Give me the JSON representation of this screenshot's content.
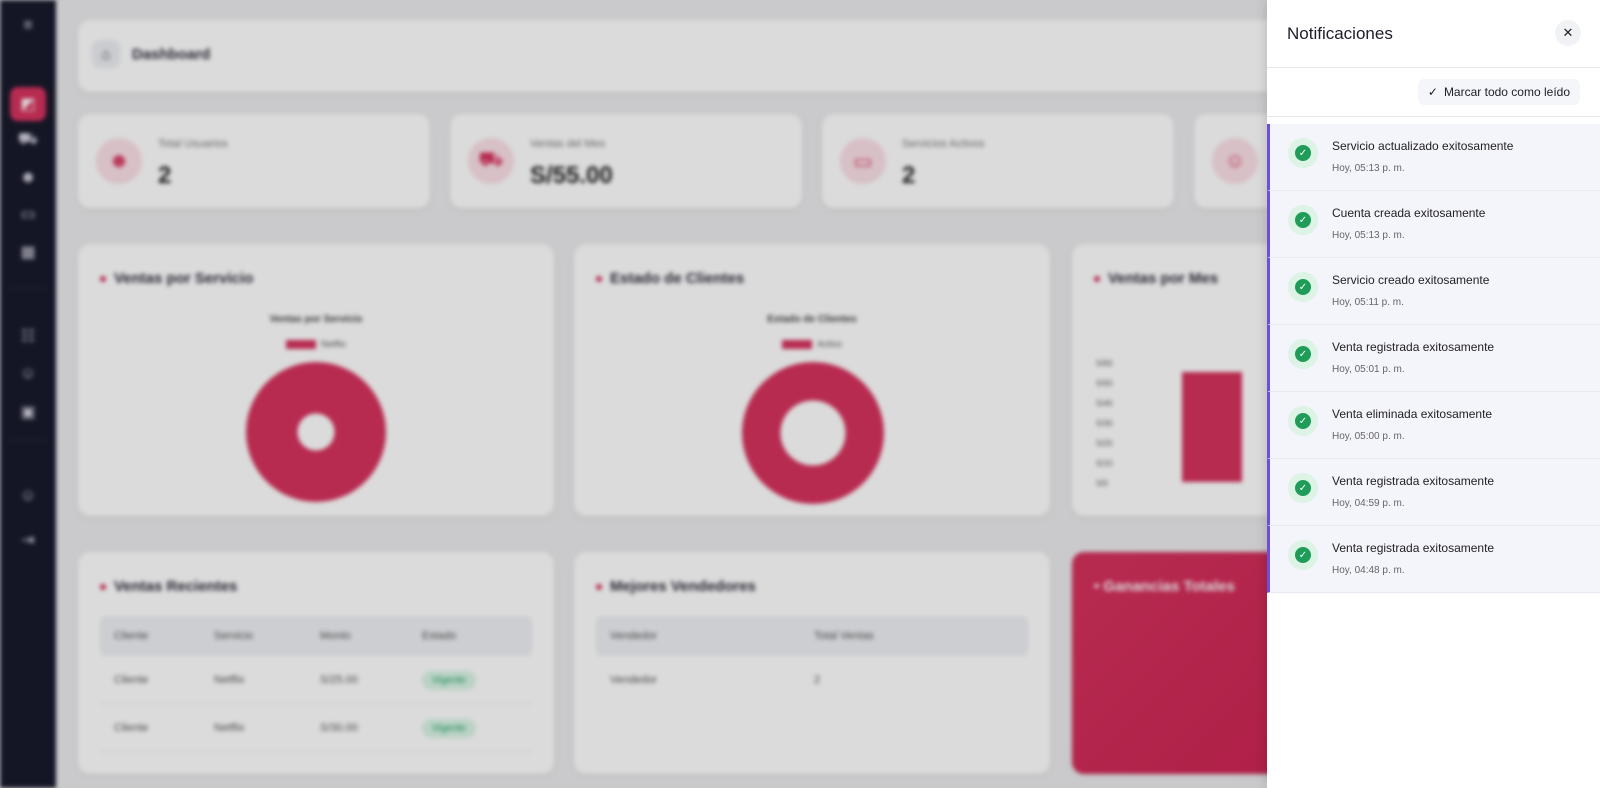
{
  "app": {
    "page_title": "Dashboard",
    "sidebar_icons": [
      "menu-icon",
      "chart-icon",
      "cart-icon",
      "users-icon",
      "monitor-icon",
      "calendar-icon",
      "group-icon",
      "user-icon",
      "ticket-icon",
      "profile-icon",
      "logout-icon"
    ],
    "stats": [
      {
        "label": "Total Usuarios",
        "value": "2",
        "icon": "users-icon"
      },
      {
        "label": "Ventas del Mes",
        "value": "S/55.00",
        "icon": "cart-icon"
      },
      {
        "label": "Servicios Activos",
        "value": "2",
        "icon": "monitor-icon"
      },
      {
        "label": "",
        "value": "",
        "icon": "user-icon"
      }
    ],
    "panels": {
      "ventas_servicio": {
        "title": "Ventas por Servicio",
        "chart_title": "Ventas por Servicio",
        "legend": "Netflix"
      },
      "estado_clientes": {
        "title": "Estado de Clientes",
        "chart_title": "Estado de Clientes",
        "legend": "Activo"
      },
      "ventas_mes": {
        "title": "Ventas por Mes",
        "y_ticks": [
          "S/60",
          "S/50",
          "S/40",
          "S/30",
          "S/20",
          "S/10",
          "S/0"
        ]
      }
    },
    "recent_sales": {
      "title": "Ventas Recientes",
      "headers": [
        "Cliente",
        "Servicio",
        "Monto",
        "Estado"
      ],
      "rows": [
        [
          "Cliente",
          "Netflix",
          "S/25.00",
          "Vigente"
        ],
        [
          "Cliente",
          "Netflix",
          "S/30.00",
          "Vigente"
        ]
      ]
    },
    "top_sellers": {
      "title": "Mejores Vendedores",
      "headers": [
        "Vendedor",
        "Total Ventas"
      ],
      "rows": [
        [
          "Vendedor",
          "2"
        ]
      ]
    },
    "earnings": {
      "title": "Ganancias Totales"
    }
  },
  "drawer": {
    "title": "Notificaciones",
    "close_label": "✕",
    "mark_all_label": "Marcar todo como leído",
    "items": [
      {
        "message": "Servicio actualizado exitosamente",
        "time": "Hoy, 05:13 p. m."
      },
      {
        "message": "Cuenta creada exitosamente",
        "time": "Hoy, 05:13 p. m."
      },
      {
        "message": "Servicio creado exitosamente",
        "time": "Hoy, 05:11 p. m."
      },
      {
        "message": "Venta registrada exitosamente",
        "time": "Hoy, 05:01 p. m."
      },
      {
        "message": "Venta eliminada exitosamente",
        "time": "Hoy, 05:00 p. m."
      },
      {
        "message": "Venta registrada exitosamente",
        "time": "Hoy, 04:59 p. m."
      },
      {
        "message": "Venta registrada exitosamente",
        "time": "Hoy, 04:48 p. m."
      }
    ]
  }
}
